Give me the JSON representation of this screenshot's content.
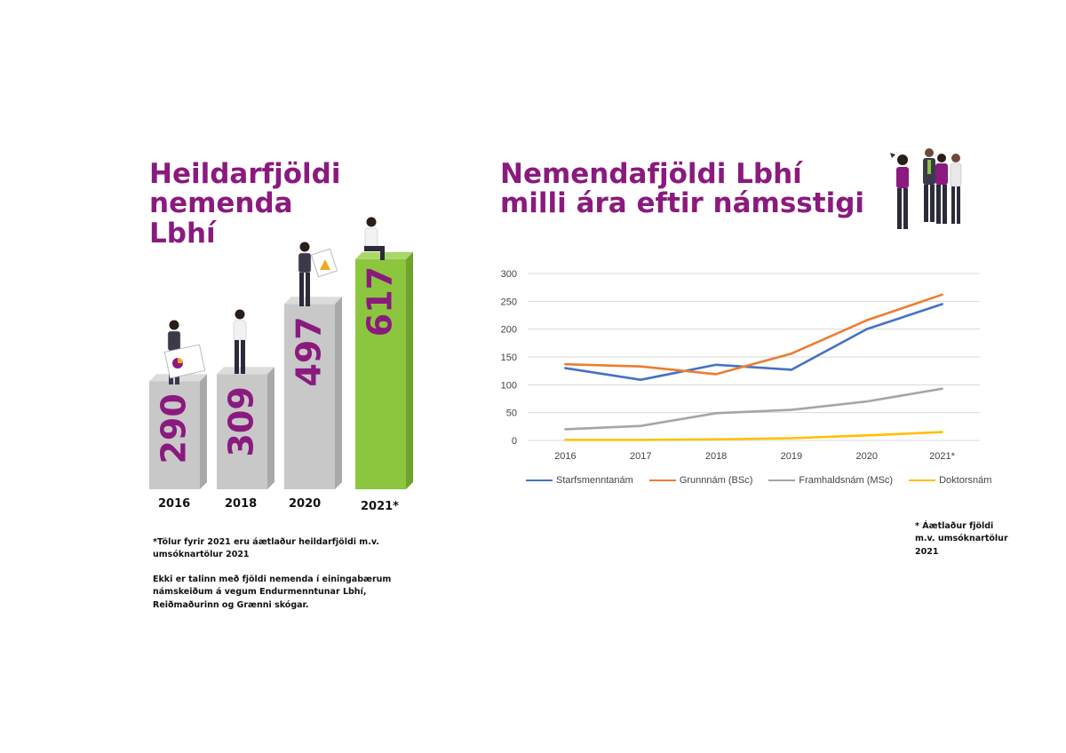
{
  "left": {
    "title_lines": [
      "Heildarfjöldi",
      "nemenda",
      "Lbhí"
    ],
    "note_1": "*Tölur fyrir 2021 eru áætlaður heildarfjöldi m.v. umsóknartölur 2021",
    "note_2": "Ekki er talinn með fjöldi nemenda í einingabærum námskeiðum á vegum Endurmenntunar Lbhí, Reiðmaðurinn og Grænni skógar."
  },
  "right": {
    "title_lines": [
      "Nemendafjöldi Lbhí",
      "milli ára eftir námsstigi"
    ],
    "note": "* Áætlaður fjöldi m.v. umsóknartölur 2021"
  },
  "colors": {
    "title": "#8a1a7e",
    "bar_grey": "#c8c8c8",
    "bar_green": "#8cc63f",
    "bar_value": "#8a1a7e"
  },
  "icons": [
    "person-with-chart-icon",
    "standing-person-icon",
    "person-with-chart-icon",
    "sitting-person-icon",
    "group-of-people-icon"
  ],
  "chart_data": [
    {
      "type": "bar",
      "categories": [
        "2016",
        "2018",
        "2020",
        "2021*"
      ],
      "values": [
        290,
        309,
        497,
        617
      ],
      "highlight_last": true
    },
    {
      "type": "line",
      "x": [
        "2016",
        "2017",
        "2018",
        "2019",
        "2020",
        "2021*"
      ],
      "ylim": [
        0,
        300
      ],
      "yticks": [
        0,
        50,
        100,
        150,
        200,
        250,
        300
      ],
      "grid": true,
      "legend_position": "bottom",
      "series": [
        {
          "name": "Starfsmenntanám",
          "color": "#4472c4",
          "values": [
            130,
            109,
            136,
            127,
            200,
            245
          ]
        },
        {
          "name": "Grunnnám (BSc)",
          "color": "#ed7d31",
          "values": [
            137,
            133,
            119,
            156,
            216,
            262
          ]
        },
        {
          "name": "Framhaldsnám (MSc)",
          "color": "#a5a5a5",
          "values": [
            20,
            26,
            49,
            55,
            70,
            93
          ]
        },
        {
          "name": "Doktorsnám",
          "color": "#ffc000",
          "values": [
            1,
            1,
            2,
            4,
            9,
            15
          ]
        }
      ]
    }
  ]
}
